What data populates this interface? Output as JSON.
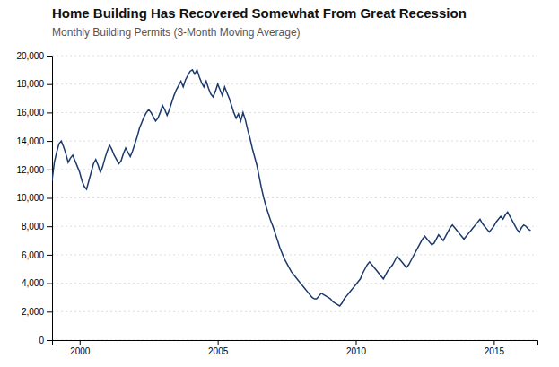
{
  "chart_data": {
    "type": "line",
    "title": "Home Building Has Recovered Somewhat From Great Recession",
    "subtitle": "Monthly Building Permits (3-Month Moving Average)",
    "color": "#1b3a6b",
    "grid": true,
    "xlim": [
      1999.0,
      2016.58
    ],
    "xticks": [
      2000,
      2005,
      2010,
      2015
    ],
    "ylim": [
      0,
      20000
    ],
    "yticks": [
      0,
      {
        "value": 2000,
        "label": "2,000"
      },
      {
        "value": 4000,
        "label": "4,000"
      },
      {
        "value": 6000,
        "label": "6,000"
      },
      {
        "value": 8000,
        "label": "8,000"
      },
      {
        "value": 10000,
        "label": "10,000"
      },
      {
        "value": 12000,
        "label": "12,000"
      },
      {
        "value": 14000,
        "label": "14,000"
      },
      {
        "value": 16000,
        "label": "16,000"
      },
      {
        "value": 18000,
        "label": "18,000"
      },
      {
        "value": 20000,
        "label": "20,000"
      }
    ],
    "x": [
      1999.0,
      1999.083,
      1999.167,
      1999.25,
      1999.333,
      1999.417,
      1999.5,
      1999.583,
      1999.667,
      1999.75,
      1999.833,
      1999.917,
      2000.0,
      2000.083,
      2000.167,
      2000.25,
      2000.333,
      2000.417,
      2000.5,
      2000.583,
      2000.667,
      2000.75,
      2000.833,
      2000.917,
      2001.0,
      2001.083,
      2001.167,
      2001.25,
      2001.333,
      2001.417,
      2001.5,
      2001.583,
      2001.667,
      2001.75,
      2001.833,
      2001.917,
      2002.0,
      2002.083,
      2002.167,
      2002.25,
      2002.333,
      2002.417,
      2002.5,
      2002.583,
      2002.667,
      2002.75,
      2002.833,
      2002.917,
      2003.0,
      2003.083,
      2003.167,
      2003.25,
      2003.333,
      2003.417,
      2003.5,
      2003.583,
      2003.667,
      2003.75,
      2003.833,
      2003.917,
      2004.0,
      2004.083,
      2004.167,
      2004.25,
      2004.333,
      2004.417,
      2004.5,
      2004.583,
      2004.667,
      2004.75,
      2004.833,
      2004.917,
      2005.0,
      2005.083,
      2005.167,
      2005.25,
      2005.333,
      2005.417,
      2005.5,
      2005.583,
      2005.667,
      2005.75,
      2005.833,
      2005.917,
      2006.0,
      2006.083,
      2006.167,
      2006.25,
      2006.333,
      2006.417,
      2006.5,
      2006.583,
      2006.667,
      2006.75,
      2006.833,
      2006.917,
      2007.0,
      2007.083,
      2007.167,
      2007.25,
      2007.333,
      2007.417,
      2007.5,
      2007.583,
      2007.667,
      2007.75,
      2007.833,
      2007.917,
      2008.0,
      2008.083,
      2008.167,
      2008.25,
      2008.333,
      2008.417,
      2008.5,
      2008.583,
      2008.667,
      2008.75,
      2008.833,
      2008.917,
      2009.0,
      2009.083,
      2009.167,
      2009.25,
      2009.333,
      2009.417,
      2009.5,
      2009.583,
      2009.667,
      2009.75,
      2009.833,
      2009.917,
      2010.0,
      2010.083,
      2010.167,
      2010.25,
      2010.333,
      2010.417,
      2010.5,
      2010.583,
      2010.667,
      2010.75,
      2010.833,
      2010.917,
      2011.0,
      2011.083,
      2011.167,
      2011.25,
      2011.333,
      2011.417,
      2011.5,
      2011.583,
      2011.667,
      2011.75,
      2011.833,
      2011.917,
      2012.0,
      2012.083,
      2012.167,
      2012.25,
      2012.333,
      2012.417,
      2012.5,
      2012.583,
      2012.667,
      2012.75,
      2012.833,
      2012.917,
      2013.0,
      2013.083,
      2013.167,
      2013.25,
      2013.333,
      2013.417,
      2013.5,
      2013.583,
      2013.667,
      2013.75,
      2013.833,
      2013.917,
      2014.0,
      2014.083,
      2014.167,
      2014.25,
      2014.333,
      2014.417,
      2014.5,
      2014.583,
      2014.667,
      2014.75,
      2014.833,
      2014.917,
      2015.0,
      2015.083,
      2015.167,
      2015.25,
      2015.333,
      2015.417,
      2015.5,
      2015.583,
      2015.667,
      2015.75,
      2015.833,
      2015.917,
      2016.0,
      2016.083,
      2016.167,
      2016.25,
      2016.333
    ],
    "values": [
      11200,
      12500,
      13200,
      13800,
      14000,
      13600,
      13100,
      12500,
      12800,
      13000,
      12600,
      12200,
      11800,
      11200,
      10800,
      10600,
      11200,
      11800,
      12400,
      12700,
      12300,
      11800,
      12200,
      12800,
      13300,
      13700,
      13400,
      13000,
      12700,
      12400,
      12600,
      13100,
      13500,
      13200,
      12900,
      13300,
      13800,
      14300,
      14900,
      15300,
      15700,
      16000,
      16200,
      16000,
      15700,
      15400,
      15600,
      16000,
      16500,
      16200,
      15800,
      16200,
      16700,
      17200,
      17600,
      17900,
      18200,
      17800,
      18300,
      18600,
      18900,
      19000,
      18700,
      19000,
      18500,
      18100,
      17800,
      18200,
      17700,
      17300,
      17100,
      17500,
      18000,
      17600,
      17200,
      17800,
      17400,
      17000,
      16500,
      16000,
      15600,
      15900,
      15400,
      16000,
      15500,
      14800,
      14200,
      13500,
      12900,
      12300,
      11500,
      10700,
      10000,
      9400,
      8900,
      8400,
      8000,
      7500,
      7000,
      6500,
      6100,
      5700,
      5400,
      5100,
      4800,
      4600,
      4400,
      4200,
      4000,
      3800,
      3600,
      3400,
      3200,
      3000,
      2900,
      2900,
      3100,
      3300,
      3200,
      3100,
      3000,
      2900,
      2700,
      2600,
      2500,
      2400,
      2600,
      2900,
      3100,
      3300,
      3500,
      3700,
      3900,
      4100,
      4300,
      4700,
      5000,
      5300,
      5500,
      5300,
      5100,
      4900,
      4700,
      4500,
      4300,
      4600,
      4900,
      5100,
      5300,
      5600,
      5900,
      5700,
      5500,
      5300,
      5100,
      5300,
      5600,
      5900,
      6200,
      6500,
      6800,
      7100,
      7300,
      7100,
      6900,
      6700,
      6800,
      7100,
      7400,
      7200,
      7000,
      7300,
      7600,
      7900,
      8100,
      7900,
      7700,
      7500,
      7300,
      7100,
      7300,
      7500,
      7700,
      7900,
      8100,
      8300,
      8500,
      8200,
      8000,
      7800,
      7600,
      7800,
      8000,
      8300,
      8500,
      8700,
      8500,
      8800,
      9000,
      8700,
      8400,
      8100,
      7800,
      7600,
      7900,
      8100,
      8000,
      7800,
      7700
    ]
  }
}
